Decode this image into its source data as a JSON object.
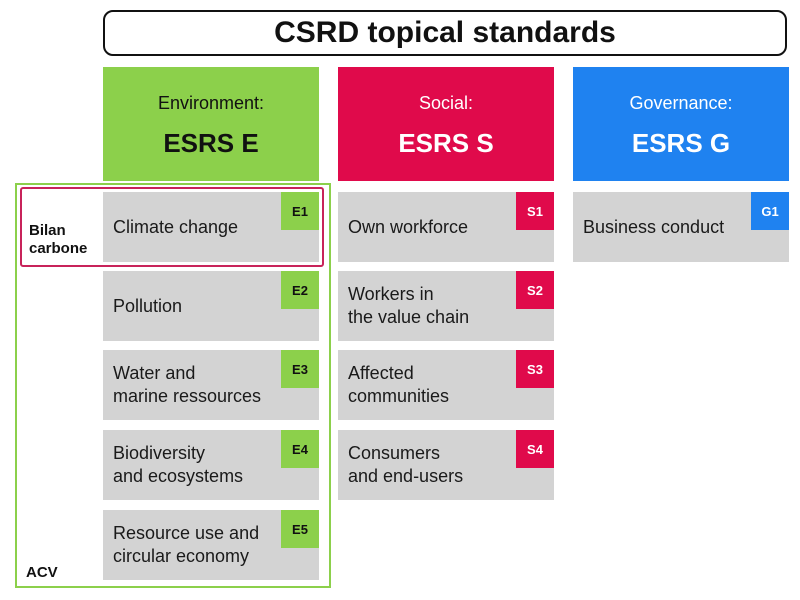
{
  "title": "CSRD topical standards",
  "colors": {
    "environment": "#8cd04b",
    "social": "#e00a4b",
    "governance": "#1f82f0",
    "card": "#d3d3d3",
    "bilan_outline": "#c8235a"
  },
  "columns": [
    {
      "pillar": "Environment:",
      "code": "ESRS E",
      "items": [
        {
          "badge": "E1",
          "label": "Climate change"
        },
        {
          "badge": "E2",
          "label": "Pollution"
        },
        {
          "badge": "E3",
          "label": "Water and\nmarine ressources"
        },
        {
          "badge": "E4",
          "label": "Biodiversity\nand ecosystems"
        },
        {
          "badge": "E5",
          "label": "Resource use and\ncircular economy"
        }
      ]
    },
    {
      "pillar": "Social:",
      "code": "ESRS S",
      "items": [
        {
          "badge": "S1",
          "label": "Own workforce"
        },
        {
          "badge": "S2",
          "label": "Workers in\nthe value chain"
        },
        {
          "badge": "S3",
          "label": "Affected\ncommunities"
        },
        {
          "badge": "S4",
          "label": "Consumers\nand end-users"
        }
      ]
    },
    {
      "pillar": "Governance:",
      "code": "ESRS G",
      "items": [
        {
          "badge": "G1",
          "label": "Business conduct"
        }
      ]
    }
  ],
  "annotations": {
    "bilan": "Bilan\ncarbone",
    "acv": "ACV"
  }
}
